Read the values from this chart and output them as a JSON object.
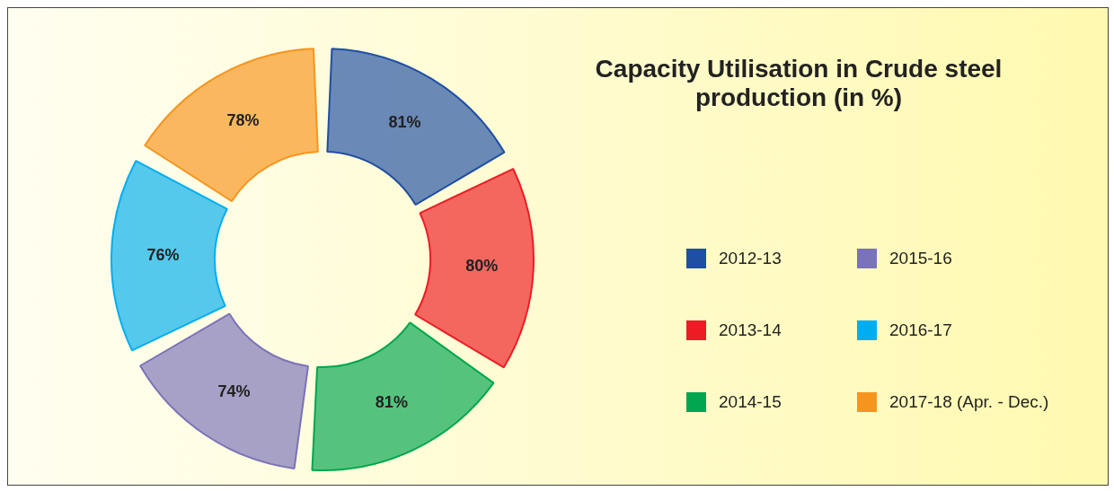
{
  "chart_data": {
    "type": "donut",
    "title": "Capacity Utilisation in Crude steel production (in %)",
    "categories": [
      "2012-13",
      "2013-14",
      "2014-15",
      "2015-16",
      "2016-17",
      "2017-18 (Apr. - Dec.)"
    ],
    "values": [
      81,
      80,
      81,
      74,
      76,
      78
    ],
    "colors": [
      "#1f4fa3",
      "#ed1c24",
      "#00a650",
      "#7b73b8",
      "#00aeef",
      "#f7941d"
    ],
    "value_labels": [
      "81%",
      "80%",
      "81%",
      "74%",
      "76%",
      "78%"
    ],
    "legend": "right"
  }
}
